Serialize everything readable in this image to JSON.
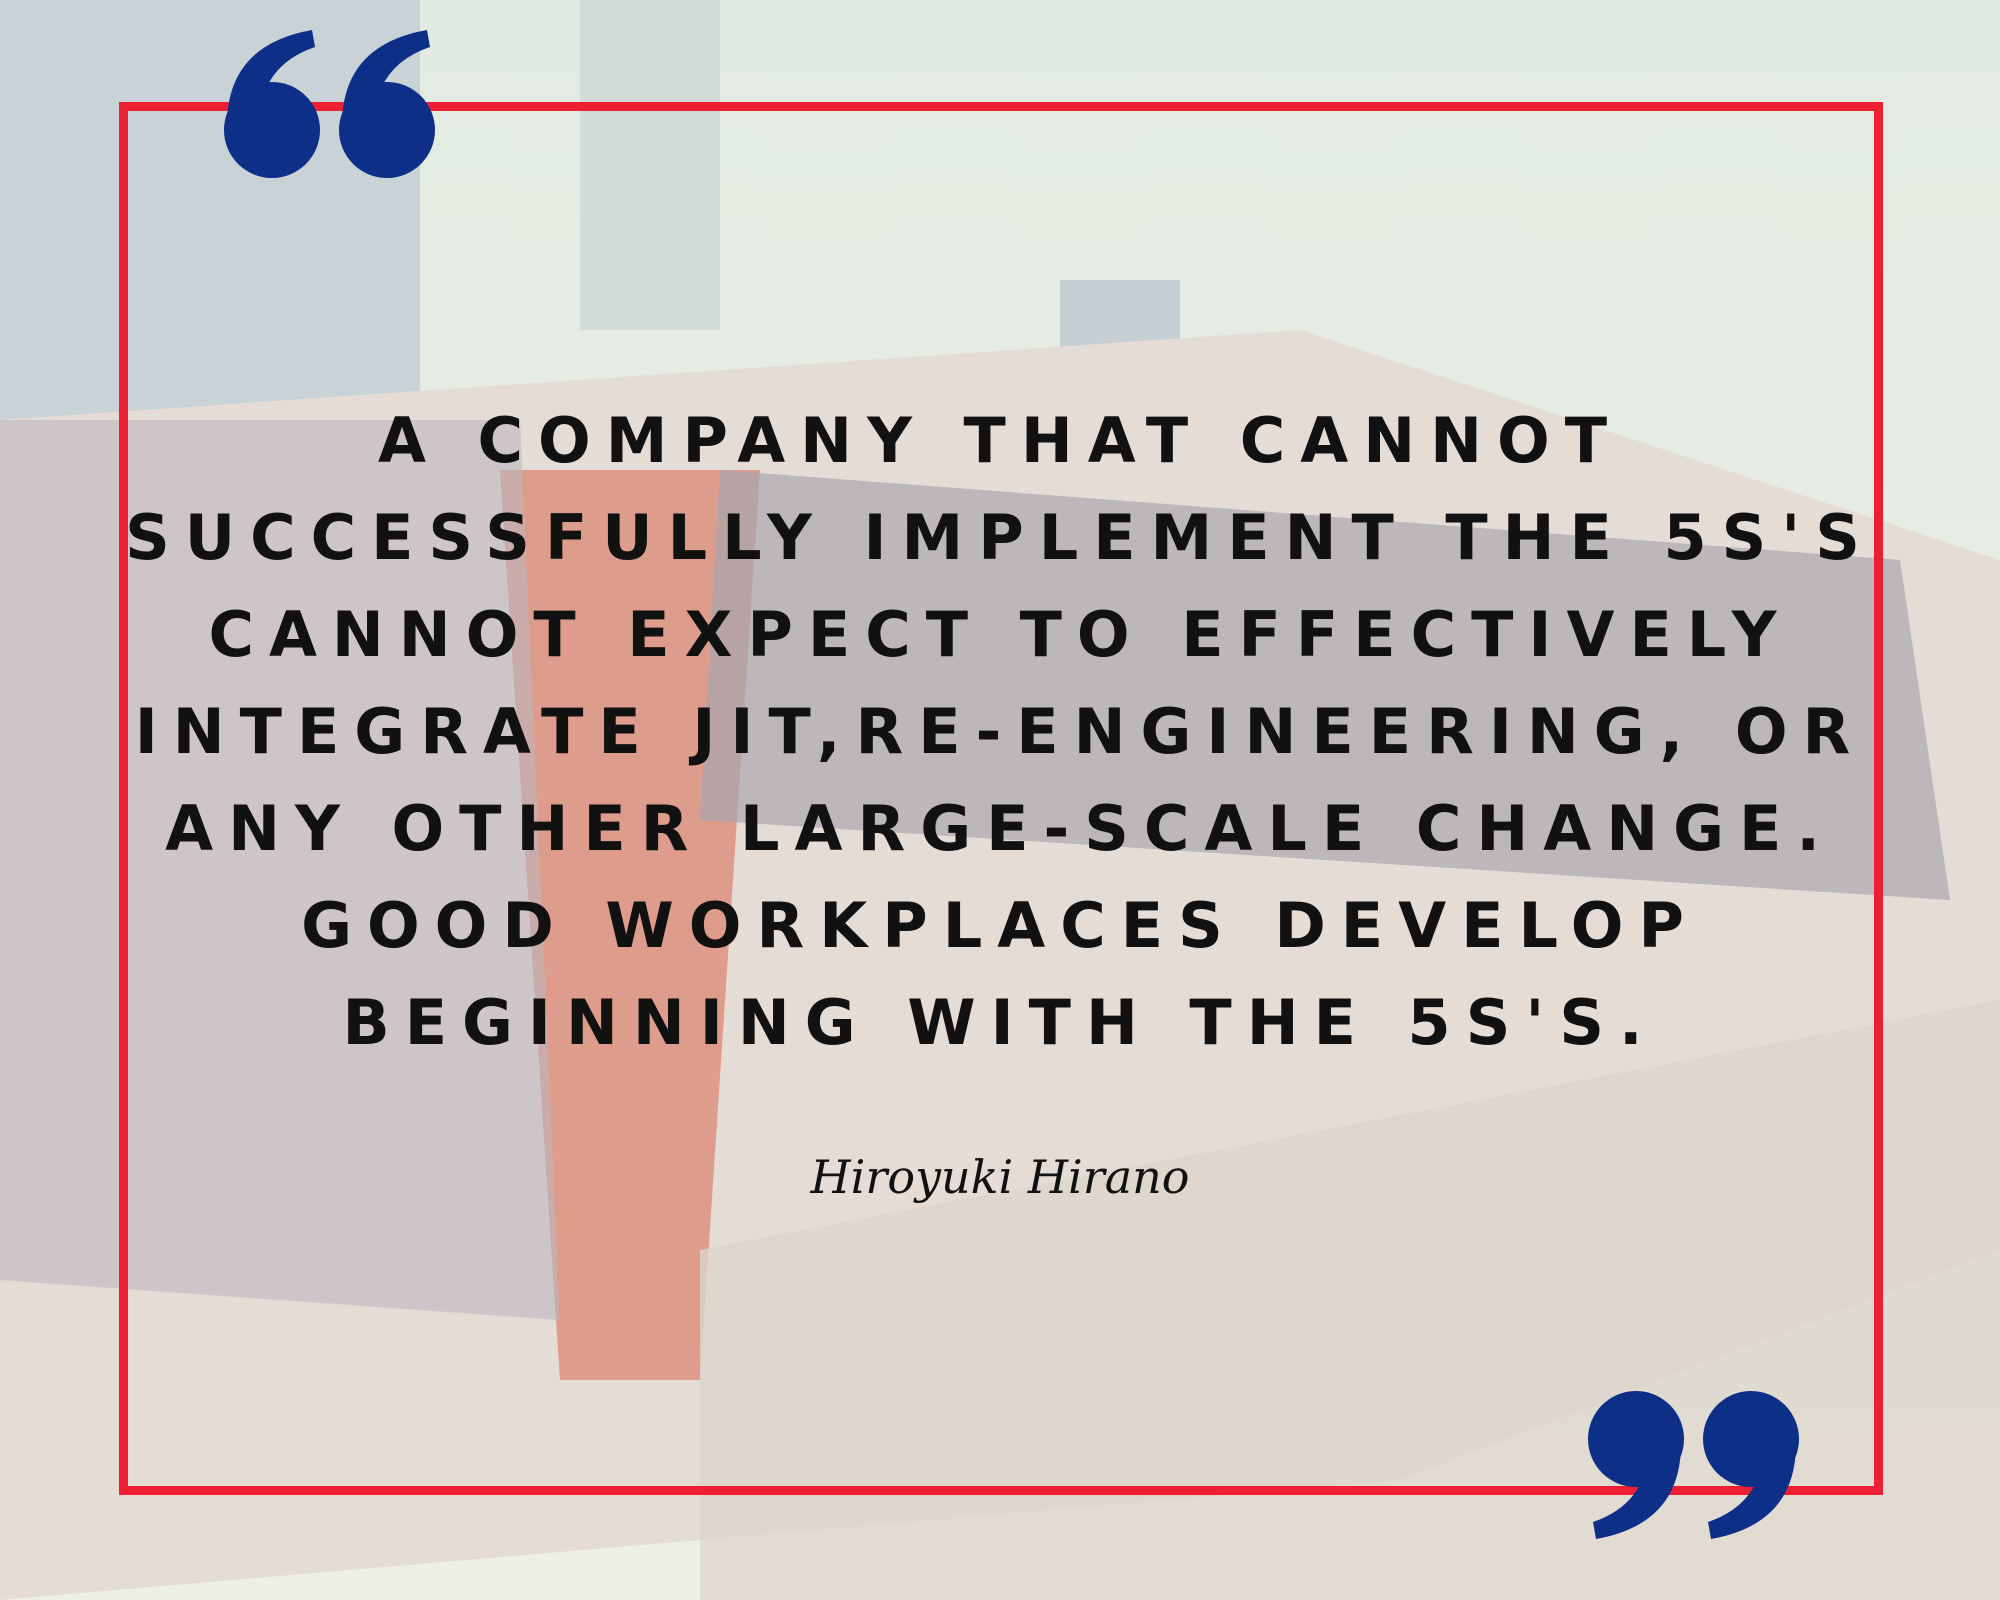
{
  "quote": {
    "lines": [
      "A COMPANY THAT CANNOT",
      "SUCCESSFULLY IMPLEMENT THE 5S'S",
      "CANNOT EXPECT TO EFFECTIVELY",
      "INTEGRATE JIT,RE-ENGINEERING, OR",
      "ANY OTHER LARGE-SCALE CHANGE.",
      "GOOD WORKPLACES DEVELOP",
      "BEGINNING WITH THE 5S'S."
    ],
    "author": "Hiroyuki Hirano"
  }
}
